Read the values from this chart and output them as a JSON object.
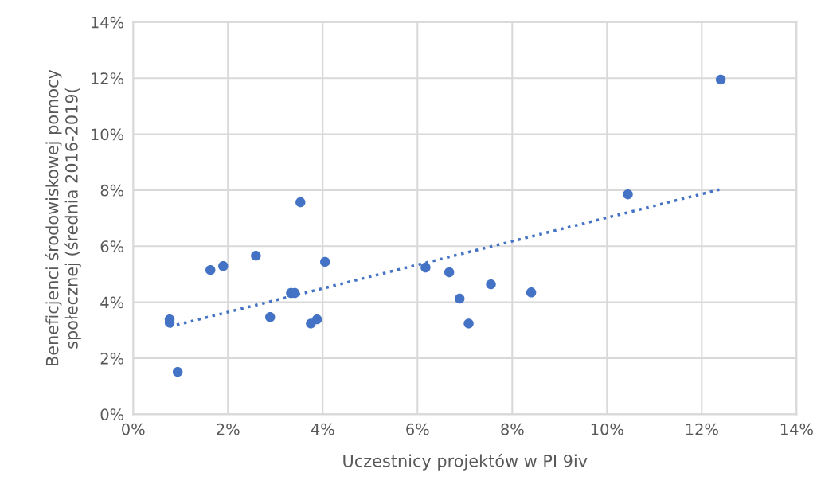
{
  "chart_data": {
    "type": "scatter",
    "xlabel": "Uczestnicy projektów w PI 9iv",
    "ylabel": "Beneficjenci środowiskowej pomocy społecznej (średnia 2016-2019(",
    "xlim": [
      0,
      14
    ],
    "ylim": [
      0,
      14
    ],
    "xticks": [
      {
        "value": 0,
        "label": "0%"
      },
      {
        "value": 2,
        "label": "2%"
      },
      {
        "value": 4,
        "label": "4%"
      },
      {
        "value": 6,
        "label": "6%"
      },
      {
        "value": 8,
        "label": "8%"
      },
      {
        "value": 10,
        "label": "10%"
      },
      {
        "value": 12,
        "label": "12%"
      },
      {
        "value": 14,
        "label": "14%"
      }
    ],
    "yticks": [
      {
        "value": 0,
        "label": "0%"
      },
      {
        "value": 2,
        "label": "2%"
      },
      {
        "value": 4,
        "label": "4%"
      },
      {
        "value": 6,
        "label": "6%"
      },
      {
        "value": 8,
        "label": "8%"
      },
      {
        "value": 10,
        "label": "10%"
      },
      {
        "value": 12,
        "label": "12%"
      },
      {
        "value": 14,
        "label": "14%"
      }
    ],
    "grid": true,
    "series": [
      {
        "marker": "circle",
        "color": "#4472c4",
        "x": [
          0.77,
          0.77,
          0.94,
          1.63,
          1.9,
          2.59,
          2.89,
          3.33,
          3.41,
          3.53,
          3.75,
          3.88,
          4.05,
          6.17,
          6.67,
          6.89,
          7.08,
          7.55,
          8.4,
          10.44,
          12.4
        ],
        "values": [
          3.39,
          3.27,
          1.51,
          5.15,
          5.29,
          5.66,
          3.47,
          4.33,
          4.33,
          7.57,
          3.24,
          3.39,
          5.44,
          5.24,
          5.07,
          4.13,
          3.24,
          4.64,
          4.35,
          7.85,
          11.95
        ]
      },
      {
        "type": "line",
        "color": "#4472c4",
        "line_style": "dotted",
        "x": [
          0.77,
          12.37
        ],
        "values": [
          3.13,
          8.02
        ]
      }
    ]
  }
}
